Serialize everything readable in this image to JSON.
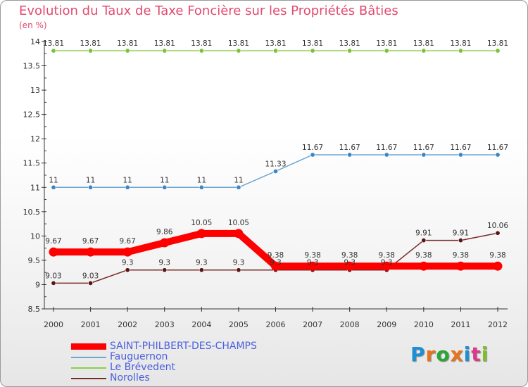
{
  "title": "Evolution du Taux de Taxe Foncière sur les Propriétés Bâties",
  "subtitle": "(en %)",
  "logo": {
    "letters": [
      "P",
      "r",
      "o",
      "x",
      "i",
      "t",
      "i"
    ],
    "colors": [
      "#1d8fd3",
      "#e9731a",
      "#2aa636",
      "#e9731a",
      "#1d8fd3",
      "#d83b8c",
      "#7fbf2a"
    ]
  },
  "chart_data": {
    "type": "line",
    "x": [
      "2000",
      "2001",
      "2002",
      "2003",
      "2004",
      "2005",
      "2006",
      "2007",
      "2008",
      "2009",
      "2010",
      "2011",
      "2012"
    ],
    "ylim": [
      8.5,
      14
    ],
    "yticks": [
      "8.5",
      "9",
      "9.5",
      "10",
      "10.5",
      "11",
      "11.5",
      "12",
      "12.5",
      "13",
      "13.5",
      "14"
    ],
    "grid": false,
    "legend_position": "bottom",
    "series": [
      {
        "name": "Le Brévedent",
        "color": "#8ccf4a",
        "marker": "#7bc23c",
        "values": [
          13.81,
          13.81,
          13.81,
          13.81,
          13.81,
          13.81,
          13.81,
          13.81,
          13.81,
          13.81,
          13.81,
          13.81,
          13.81
        ],
        "labels": [
          "13.81",
          "13.81",
          "13.81",
          "13.81",
          "13.81",
          "13.81",
          "13.81",
          "13.81",
          "13.81",
          "13.81",
          "13.81",
          "13.81",
          "13.81"
        ]
      },
      {
        "name": "Fauguernon",
        "color": "#6ea6d0",
        "marker": "#3d86c3",
        "values": [
          11,
          11,
          11,
          11,
          11,
          11,
          11.33,
          11.67,
          11.67,
          11.67,
          11.67,
          11.67,
          11.67
        ],
        "labels": [
          "11",
          "11",
          "11",
          "11",
          "11",
          "11",
          "11.33",
          "11.67",
          "11.67",
          "11.67",
          "11.67",
          "11.67",
          "11.67"
        ]
      },
      {
        "name": "Norolles",
        "color": "#7a2a2a",
        "marker": "#5a1414",
        "values": [
          9.03,
          9.03,
          9.3,
          9.3,
          9.3,
          9.3,
          9.3,
          9.3,
          9.3,
          9.3,
          9.91,
          9.91,
          10.06
        ],
        "labels": [
          "9.03",
          "9.03",
          "9.3",
          "9.3",
          "9.3",
          "9.3",
          "9.3",
          "9.3",
          "9.3",
          "9.3",
          "9.91",
          "9.91",
          "10.06"
        ]
      },
      {
        "name": "SAINT-PHILBERT-DES-CHAMPS",
        "color": "#ff0000",
        "marker": "#ff0000",
        "values": [
          9.67,
          9.67,
          9.67,
          9.86,
          10.05,
          10.05,
          9.38,
          9.38,
          9.38,
          9.38,
          9.38,
          9.38,
          9.38
        ],
        "labels": [
          "9.67",
          "9.67",
          "9.67",
          "9.86",
          "10.05",
          "10.05",
          "9.38",
          "9.38",
          "9.38",
          "9.38",
          "9.38",
          "9.38",
          "9.38"
        ]
      }
    ],
    "legend": [
      "SAINT-PHILBERT-DES-CHAMPS",
      "Fauguernon",
      "Le Brévedent",
      "Norolles"
    ]
  }
}
